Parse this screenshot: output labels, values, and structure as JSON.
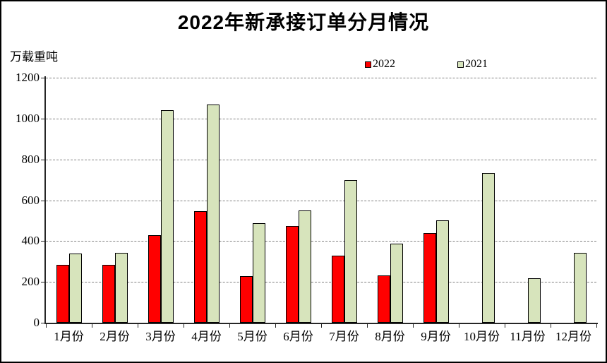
{
  "chart_data": {
    "type": "bar",
    "title": "2022年新承接订单分月情况",
    "unit_label": "万载重吨",
    "categories": [
      "1月份",
      "2月份",
      "3月份",
      "4月份",
      "5月份",
      "6月份",
      "7月份",
      "8月份",
      "9月份",
      "10月份",
      "11月份",
      "12月份"
    ],
    "series": [
      {
        "name": "2022",
        "color": "#FF0000",
        "values": [
          283,
          285,
          430,
          547,
          230,
          475,
          328,
          232,
          440,
          null,
          null,
          null
        ]
      },
      {
        "name": "2021",
        "color": "#D7E4BC",
        "values": [
          338,
          342,
          1042,
          1070,
          489,
          550,
          700,
          388,
          502,
          732,
          218,
          341
        ]
      }
    ],
    "xlabel": "",
    "ylabel": "万载重吨",
    "ylim": [
      0,
      1200
    ],
    "yticks": [
      0,
      200,
      400,
      600,
      800,
      1000,
      1200
    ],
    "grid": "horizontal-dashed",
    "legend_position": "top-center",
    "colors": {
      "gridline": "#808080",
      "axis": "#262626",
      "bar_border": "#000000",
      "background": "#FFFFFF",
      "frame_border": "#000000"
    }
  }
}
